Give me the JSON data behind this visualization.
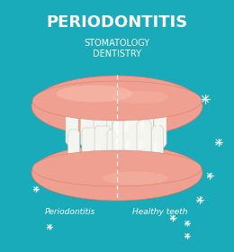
{
  "bg_color": "#1AABBB",
  "title": "PERIODONTITIS",
  "subtitle1": "STOMATOLOGY",
  "subtitle2": "DENTISTRY",
  "label_left": "Periodontitis",
  "label_right": "Healthy teeth",
  "gum_color_upper": "#F0A090",
  "gum_color_lower": "#F0A090",
  "gum_highlight": "#F8C0B0",
  "gum_shadow": "#D07868",
  "tooth_color": "#F5F5F0",
  "tooth_highlight": "#FFFFFF",
  "tooth_shadow": "#D0D0C8",
  "receded_gum_color": "#E88878",
  "divider_color": "#FFFFFF",
  "sparkle_color": "#FFFFFF",
  "title_fontsize": 13,
  "subtitle_fontsize": 7,
  "label_fontsize": 6.5
}
